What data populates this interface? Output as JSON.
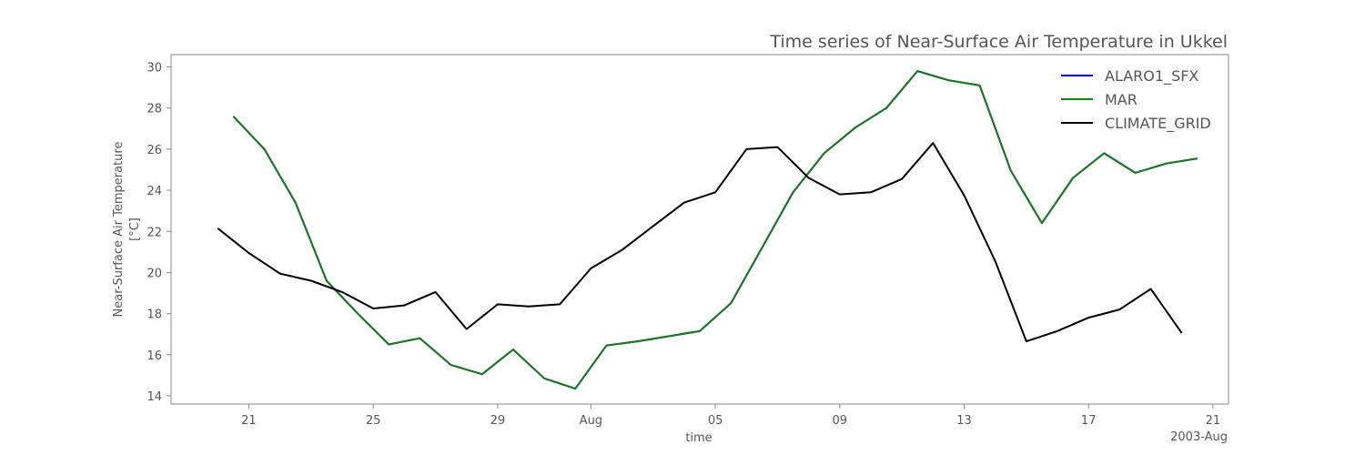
{
  "chart_data": {
    "type": "line",
    "title": "Time series of Near-Surface Air Temperature in Ukkel",
    "xlabel": "time",
    "ylabel_line1": "Near-Surface Air Temperature",
    "ylabel_line2": "[°C]",
    "x_offset_label": "2003-Aug",
    "ylim": [
      13.6,
      30.6
    ],
    "yticks": [
      14,
      16,
      18,
      20,
      22,
      24,
      26,
      28,
      30
    ],
    "xlim": [
      "2003-07-18T12:00",
      "2003-08-21T12:00"
    ],
    "xticks": [
      {
        "date": "2003-07-21",
        "label": "21"
      },
      {
        "date": "2003-07-25",
        "label": "25"
      },
      {
        "date": "2003-07-29",
        "label": "29"
      },
      {
        "date": "2003-08-01",
        "label": "Aug"
      },
      {
        "date": "2003-08-05",
        "label": "05"
      },
      {
        "date": "2003-08-09",
        "label": "09"
      },
      {
        "date": "2003-08-13",
        "label": "13"
      },
      {
        "date": "2003-08-17",
        "label": "17"
      },
      {
        "date": "2003-08-21",
        "label": "21"
      }
    ],
    "legend_position": "top-right",
    "grid": false,
    "series": [
      {
        "name": "ALARO1_SFX",
        "color": "#0000cc",
        "points": [
          [
            "2003-07-20T12:00",
            27.6
          ],
          [
            "2003-07-21T12:00",
            26.0
          ],
          [
            "2003-07-22T12:00",
            23.4
          ],
          [
            "2003-07-23T12:00",
            19.6
          ],
          [
            "2003-07-24T12:00",
            18.0
          ],
          [
            "2003-07-25T12:00",
            16.5
          ],
          [
            "2003-07-26T12:00",
            16.8
          ],
          [
            "2003-07-27T12:00",
            15.5
          ],
          [
            "2003-07-28T12:00",
            15.05
          ],
          [
            "2003-07-29T12:00",
            16.25
          ],
          [
            "2003-07-30T12:00",
            14.85
          ],
          [
            "2003-07-31T12:00",
            14.35
          ],
          [
            "2003-08-01T12:00",
            16.45
          ],
          [
            "2003-08-02T12:00",
            16.65
          ],
          [
            "2003-08-03T12:00",
            16.9
          ],
          [
            "2003-08-04T12:00",
            17.15
          ],
          [
            "2003-08-05T12:00",
            18.5
          ],
          [
            "2003-08-06T12:00",
            21.2
          ],
          [
            "2003-08-07T12:00",
            23.9
          ],
          [
            "2003-08-08T12:00",
            25.8
          ],
          [
            "2003-08-09T12:00",
            27.05
          ],
          [
            "2003-08-10T12:00",
            28.0
          ],
          [
            "2003-08-11T12:00",
            29.8
          ],
          [
            "2003-08-12T12:00",
            29.35
          ],
          [
            "2003-08-13T12:00",
            29.1
          ],
          [
            "2003-08-14T12:00",
            24.95
          ],
          [
            "2003-08-15T12:00",
            22.4
          ],
          [
            "2003-08-16T12:00",
            24.6
          ],
          [
            "2003-08-17T12:00",
            25.8
          ],
          [
            "2003-08-18T12:00",
            24.85
          ],
          [
            "2003-08-19T12:00",
            25.3
          ],
          [
            "2003-08-20T12:00",
            25.55
          ]
        ]
      },
      {
        "name": "MAR",
        "color": "#1a7a1a",
        "points": [
          [
            "2003-07-20T12:00",
            27.6
          ],
          [
            "2003-07-21T12:00",
            26.0
          ],
          [
            "2003-07-22T12:00",
            23.4
          ],
          [
            "2003-07-23T12:00",
            19.6
          ],
          [
            "2003-07-24T12:00",
            18.0
          ],
          [
            "2003-07-25T12:00",
            16.5
          ],
          [
            "2003-07-26T12:00",
            16.8
          ],
          [
            "2003-07-27T12:00",
            15.5
          ],
          [
            "2003-07-28T12:00",
            15.05
          ],
          [
            "2003-07-29T12:00",
            16.25
          ],
          [
            "2003-07-30T12:00",
            14.85
          ],
          [
            "2003-07-31T12:00",
            14.35
          ],
          [
            "2003-08-01T12:00",
            16.45
          ],
          [
            "2003-08-02T12:00",
            16.65
          ],
          [
            "2003-08-03T12:00",
            16.9
          ],
          [
            "2003-08-04T12:00",
            17.15
          ],
          [
            "2003-08-05T12:00",
            18.5
          ],
          [
            "2003-08-06T12:00",
            21.2
          ],
          [
            "2003-08-07T12:00",
            23.9
          ],
          [
            "2003-08-08T12:00",
            25.8
          ],
          [
            "2003-08-09T12:00",
            27.05
          ],
          [
            "2003-08-10T12:00",
            28.0
          ],
          [
            "2003-08-11T12:00",
            29.8
          ],
          [
            "2003-08-12T12:00",
            29.35
          ],
          [
            "2003-08-13T12:00",
            29.1
          ],
          [
            "2003-08-14T12:00",
            24.95
          ],
          [
            "2003-08-15T12:00",
            22.4
          ],
          [
            "2003-08-16T12:00",
            24.6
          ],
          [
            "2003-08-17T12:00",
            25.8
          ],
          [
            "2003-08-18T12:00",
            24.85
          ],
          [
            "2003-08-19T12:00",
            25.3
          ],
          [
            "2003-08-20T12:00",
            25.55
          ]
        ]
      },
      {
        "name": "CLIMATE_GRID",
        "color": "#000000",
        "points": [
          [
            "2003-07-20T00:00",
            22.15
          ],
          [
            "2003-07-21T00:00",
            20.95
          ],
          [
            "2003-07-22T00:00",
            19.95
          ],
          [
            "2003-07-23T00:00",
            19.6
          ],
          [
            "2003-07-24T00:00",
            19.05
          ],
          [
            "2003-07-25T00:00",
            18.25
          ],
          [
            "2003-07-26T00:00",
            18.4
          ],
          [
            "2003-07-27T00:00",
            19.05
          ],
          [
            "2003-07-28T00:00",
            17.25
          ],
          [
            "2003-07-29T00:00",
            18.45
          ],
          [
            "2003-07-30T00:00",
            18.35
          ],
          [
            "2003-07-31T00:00",
            18.45
          ],
          [
            "2003-08-01T00:00",
            20.2
          ],
          [
            "2003-08-02T00:00",
            21.1
          ],
          [
            "2003-08-03T00:00",
            22.25
          ],
          [
            "2003-08-04T00:00",
            23.4
          ],
          [
            "2003-08-05T00:00",
            23.9
          ],
          [
            "2003-08-06T00:00",
            26.0
          ],
          [
            "2003-08-07T00:00",
            26.1
          ],
          [
            "2003-08-08T00:00",
            24.6
          ],
          [
            "2003-08-09T00:00",
            23.8
          ],
          [
            "2003-08-10T00:00",
            23.9
          ],
          [
            "2003-08-11T00:00",
            24.55
          ],
          [
            "2003-08-12T00:00",
            26.3
          ],
          [
            "2003-08-13T00:00",
            23.75
          ],
          [
            "2003-08-14T00:00",
            20.55
          ],
          [
            "2003-08-15T00:00",
            16.65
          ],
          [
            "2003-08-16T00:00",
            17.15
          ],
          [
            "2003-08-17T00:00",
            17.8
          ],
          [
            "2003-08-18T00:00",
            18.2
          ],
          [
            "2003-08-19T00:00",
            19.2
          ],
          [
            "2003-08-20T00:00",
            17.05
          ]
        ]
      }
    ]
  }
}
